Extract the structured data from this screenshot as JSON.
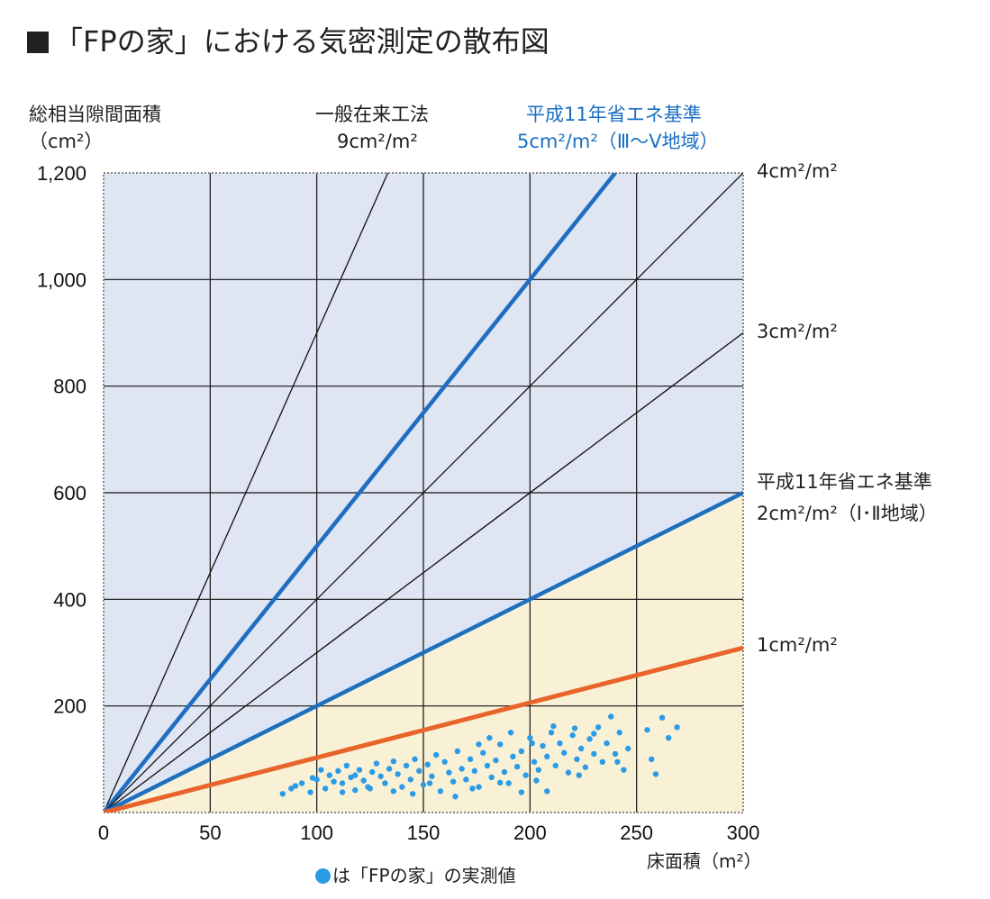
{
  "title": "「FPの家」における気密測定の散布図",
  "chart_data": {
    "type": "scatter",
    "ylabel": "総相当隙間面積",
    "ylabel_unit": "（cm²）",
    "xlabel": "床面積（m²）",
    "xlim": [
      0,
      300
    ],
    "ylim": [
      0,
      1200
    ],
    "x_ticks": [
      "0",
      "50",
      "100",
      "150",
      "200",
      "250",
      "300"
    ],
    "y_ticks": [
      "200",
      "400",
      "600",
      "800",
      "1,000",
      "1,200"
    ],
    "grid": true,
    "colors": {
      "plot_bg": "#dfe5f2",
      "shaded_region": "#f9f1d6",
      "thin_line": "#111111",
      "standard_line": "#1d6fc2",
      "target_line": "#e8642a",
      "point": "#2b9be6"
    },
    "reference_lines": [
      {
        "slope": 9,
        "style": "thin",
        "label": "一般在来工法",
        "label2": "9cm²/m²"
      },
      {
        "slope": 5,
        "style": "standard",
        "label": "平成11年省エネ基準",
        "label2": "5cm²/m²（Ⅲ～Ⅴ地域）"
      },
      {
        "slope": 4,
        "style": "thin",
        "label": "4cm²/m²"
      },
      {
        "slope": 3,
        "style": "thin",
        "label": "3cm²/m²"
      },
      {
        "slope": 2,
        "style": "standard",
        "label": "平成11年省エネ基準",
        "label2": "2cm²/m²（Ⅰ･Ⅱ地域）"
      },
      {
        "slope": 1.03,
        "style": "target",
        "label": "1cm²/m²"
      }
    ],
    "series": [
      {
        "name": "は「FPの家」の実測値",
        "points": [
          [
            84,
            35
          ],
          [
            88,
            45
          ],
          [
            90,
            50
          ],
          [
            93,
            55
          ],
          [
            97,
            38
          ],
          [
            100,
            62
          ],
          [
            102,
            80
          ],
          [
            104,
            45
          ],
          [
            106,
            70
          ],
          [
            108,
            58
          ],
          [
            110,
            78
          ],
          [
            112,
            55
          ],
          [
            114,
            88
          ],
          [
            116,
            66
          ],
          [
            118,
            42
          ],
          [
            120,
            80
          ],
          [
            122,
            60
          ],
          [
            124,
            48
          ],
          [
            126,
            76
          ],
          [
            128,
            92
          ],
          [
            130,
            68
          ],
          [
            132,
            55
          ],
          [
            134,
            82
          ],
          [
            136,
            96
          ],
          [
            138,
            72
          ],
          [
            140,
            48
          ],
          [
            142,
            88
          ],
          [
            144,
            62
          ],
          [
            146,
            100
          ],
          [
            148,
            78
          ],
          [
            150,
            52
          ],
          [
            152,
            90
          ],
          [
            154,
            68
          ],
          [
            156,
            108
          ],
          [
            158,
            40
          ],
          [
            160,
            95
          ],
          [
            162,
            75
          ],
          [
            164,
            58
          ],
          [
            166,
            115
          ],
          [
            168,
            82
          ],
          [
            170,
            62
          ],
          [
            172,
            100
          ],
          [
            174,
            78
          ],
          [
            176,
            48
          ],
          [
            178,
            112
          ],
          [
            180,
            88
          ],
          [
            182,
            66
          ],
          [
            184,
            98
          ],
          [
            186,
            128
          ],
          [
            188,
            76
          ],
          [
            190,
            55
          ],
          [
            192,
            105
          ],
          [
            194,
            86
          ],
          [
            196,
            115
          ],
          [
            198,
            70
          ],
          [
            200,
            140
          ],
          [
            202,
            95
          ],
          [
            204,
            80
          ],
          [
            206,
            125
          ],
          [
            208,
            105
          ],
          [
            210,
            150
          ],
          [
            212,
            88
          ],
          [
            214,
            130
          ],
          [
            216,
            112
          ],
          [
            218,
            75
          ],
          [
            220,
            145
          ],
          [
            222,
            100
          ],
          [
            224,
            120
          ],
          [
            226,
            85
          ],
          [
            228,
            138
          ],
          [
            230,
            110
          ],
          [
            232,
            160
          ],
          [
            234,
            95
          ],
          [
            236,
            130
          ],
          [
            238,
            180
          ],
          [
            240,
            110
          ],
          [
            242,
            150
          ],
          [
            244,
            80
          ],
          [
            246,
            120
          ],
          [
            255,
            155
          ],
          [
            257,
            100
          ],
          [
            259,
            72
          ],
          [
            262,
            178
          ],
          [
            265,
            140
          ],
          [
            269,
            160
          ],
          [
            176,
            128
          ],
          [
            186,
            56
          ],
          [
            196,
            38
          ],
          [
            208,
            40
          ],
          [
            165,
            30
          ],
          [
            145,
            35
          ],
          [
            125,
            45
          ],
          [
            112,
            38
          ],
          [
            98,
            65
          ],
          [
            181,
            140
          ],
          [
            191,
            150
          ],
          [
            201,
            130
          ],
          [
            211,
            162
          ],
          [
            221,
            158
          ],
          [
            230,
            148
          ],
          [
            203,
            60
          ],
          [
            223,
            70
          ],
          [
            241,
            95
          ],
          [
            153,
            55
          ],
          [
            173,
            45
          ],
          [
            136,
            40
          ],
          [
            118,
            70
          ]
        ]
      }
    ]
  }
}
